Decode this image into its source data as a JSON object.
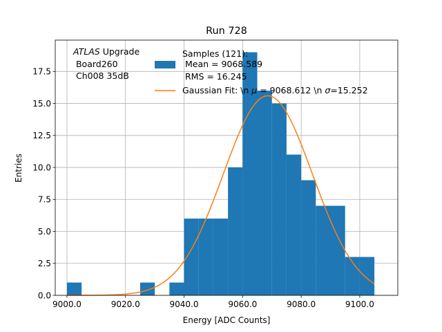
{
  "chart_data": {
    "type": "bar",
    "title": "Run 728",
    "xlabel": "Energy [ADC Counts]",
    "ylabel": "Entries",
    "xlim": [
      8996.0,
      9113.0
    ],
    "ylim": [
      0,
      19.95
    ],
    "grid": true,
    "xticks": [
      9000,
      9020,
      9040,
      9060,
      9080,
      9100
    ],
    "xtick_labels": [
      "9000.0",
      "9020.0",
      "9040.0",
      "9060.0",
      "9080.0",
      "9100.0"
    ],
    "yticks": [
      0,
      2.5,
      5,
      7.5,
      10,
      12.5,
      15,
      17.5
    ],
    "ytick_labels": [
      "0.0",
      "2.5",
      "5.0",
      "7.5",
      "10.0",
      "12.5",
      "15.0",
      "17.5"
    ],
    "histogram": {
      "name": "Samples (121):",
      "color": "#1f77b4",
      "bin_edges": [
        9000,
        9005,
        9010,
        9015,
        9020,
        9025,
        9030,
        9035,
        9040,
        9045,
        9050,
        9055,
        9060,
        9065,
        9070,
        9075,
        9080,
        9085,
        9090,
        9095,
        9100,
        9105
      ],
      "counts": [
        1,
        0,
        0,
        0,
        0,
        1,
        0,
        1,
        6,
        6,
        6,
        10,
        19,
        16,
        15,
        11,
        9,
        7,
        7,
        3,
        3
      ]
    },
    "fit": {
      "type": "gaussian",
      "color": "#ff7f0e",
      "mu": 9068.612,
      "sigma": 15.252,
      "amplitude": 15.6,
      "x_range": [
        9000,
        9105
      ]
    },
    "annotation": {
      "italic": "ATLAS",
      "line1_rest": " Upgrade",
      "line2": " Board260",
      "line3": " Ch008 35dB"
    },
    "legend": {
      "placement": "top-center",
      "entries": [
        {
          "kind": "patch",
          "color": "#1f77b4",
          "lines": [
            "Samples (121):",
            " Mean = 9068.589",
            " RMS = 16.245"
          ]
        },
        {
          "kind": "line",
          "color": "#ff7f0e",
          "pre": "Gaussian Fit: \\n ",
          "mu_sym": "μ",
          "mid": " = 9068.612 \\n ",
          "sigma_sym": "σ",
          "post": "=15.252"
        }
      ]
    }
  }
}
